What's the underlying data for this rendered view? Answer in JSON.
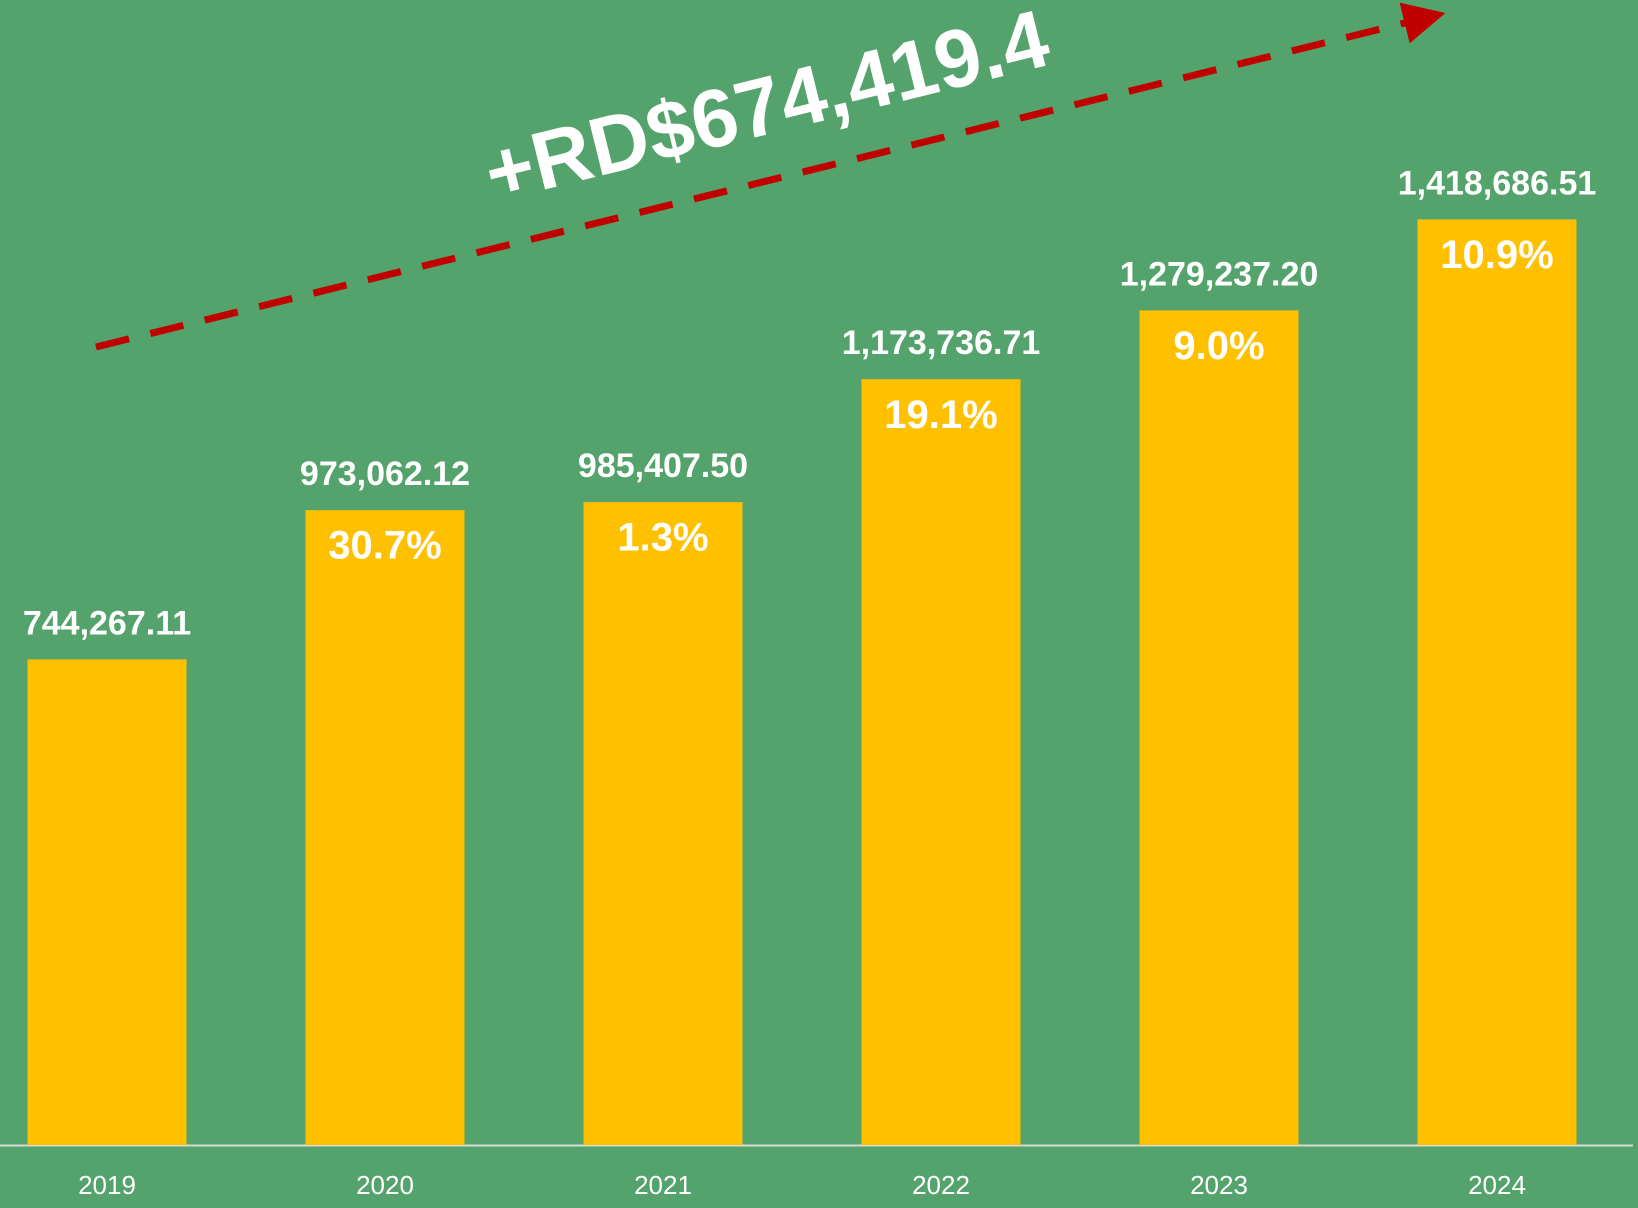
{
  "chart_data": {
    "type": "bar",
    "annotation": "+RD$674,419.4",
    "categories": [
      "2019",
      "2020",
      "2021",
      "2022",
      "2023",
      "2024"
    ],
    "values": [
      744267.11,
      973062.12,
      985407.5,
      1173736.71,
      1279237.2,
      1418686.51
    ],
    "value_labels": [
      "744,267.11",
      "973,062.12",
      "985,407.50",
      "1,173,736.71",
      "1,279,237.20",
      "1,418,686.51"
    ],
    "growth_values": [
      null,
      30.7,
      1.3,
      19.1,
      9.0,
      10.9
    ],
    "growth_labels": [
      null,
      "30.7%",
      "1.3%",
      "19.1%",
      "9.0%",
      "10.9%"
    ],
    "color": "#ffc000",
    "ylim": [
      0,
      1755000
    ],
    "grid": false
  }
}
